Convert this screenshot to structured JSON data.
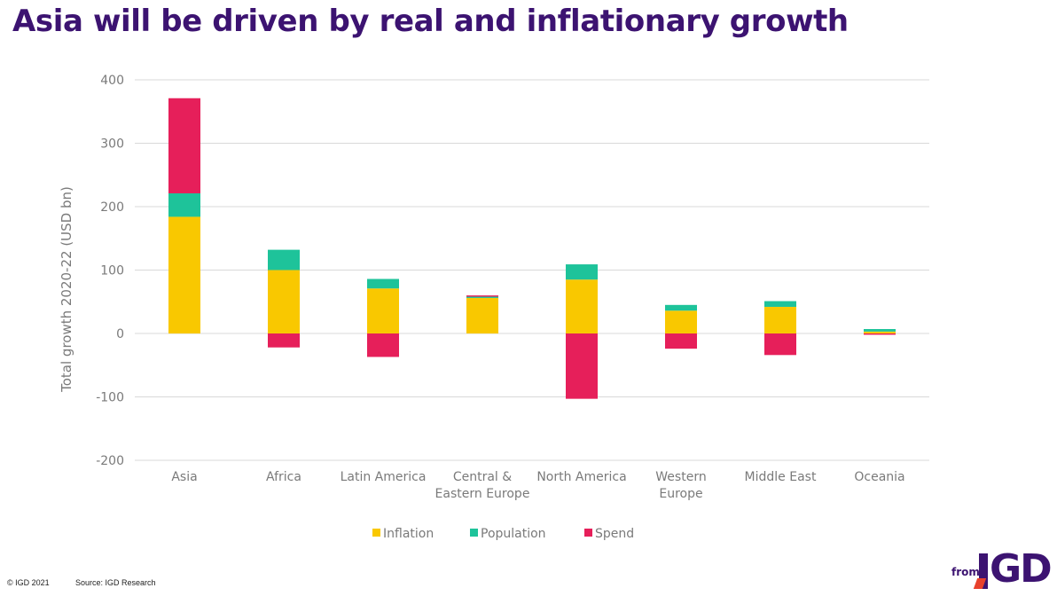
{
  "title": "Asia will be driven by real and inflationary growth",
  "footer": {
    "copyright": "© IGD 2021",
    "source": "Source: IGD Research"
  },
  "brand": {
    "from": "from",
    "logo_text": "IGD",
    "logo_i": "I",
    "logo_gd": "GD"
  },
  "colors": {
    "title": "#3c1371",
    "inflation": "#f9c800",
    "population": "#1ec39a",
    "spend": "#e61f5a",
    "grid": "#d9d9d9",
    "axis_text": "#7a7a7a"
  },
  "chart_data": {
    "type": "bar",
    "stacked": true,
    "ylabel": "Total growth 2020-22 (USD bn)",
    "ylim": [
      -200,
      400
    ],
    "yticks": [
      -200,
      -100,
      0,
      100,
      200,
      300,
      400
    ],
    "grid": true,
    "legend_position": "bottom",
    "categories": [
      [
        "Asia"
      ],
      [
        "Africa"
      ],
      [
        "Latin America"
      ],
      [
        "Central &",
        "Eastern Europe"
      ],
      [
        "North America"
      ],
      [
        "Western",
        "Europe"
      ],
      [
        "Middle East"
      ],
      [
        "Oceania"
      ]
    ],
    "series": [
      {
        "name": "Inflation",
        "color": "#f9c800",
        "values": [
          184,
          100,
          71,
          56,
          85,
          36,
          42,
          3
        ]
      },
      {
        "name": "Population",
        "color": "#1ec39a",
        "values": [
          37,
          32,
          15,
          2,
          24,
          9,
          9,
          4
        ]
      },
      {
        "name": "Spend",
        "color": "#e61f5a",
        "values": [
          150,
          -22,
          -37,
          2,
          -103,
          -24,
          -34,
          -2
        ]
      }
    ]
  }
}
